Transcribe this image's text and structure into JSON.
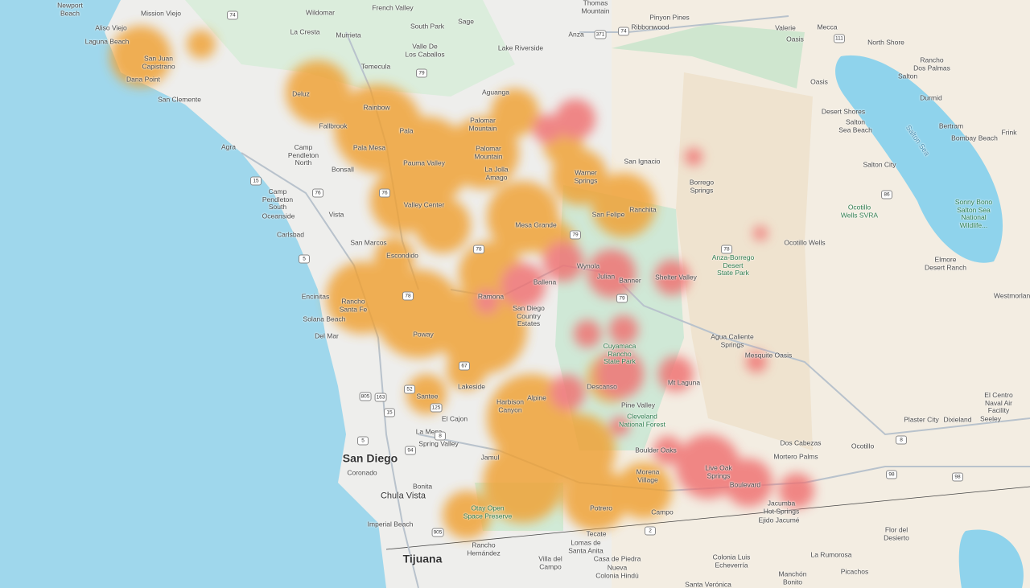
{
  "labels": [
    "Newport\nBeach",
    "Mission Viejo",
    "Aliso Viejo",
    "Laguna Beach",
    "San Juan\nCapistrano",
    "Dana Point",
    "San Clemente",
    "Wildomar",
    "La Cresta",
    "Murrieta",
    "French Valley",
    "South Park",
    "Sage",
    "Valle De\nLos Caballos",
    "Temecula",
    "Thomas\nMountain",
    "Pinyon Pines",
    "Ribbonwood",
    "Anza",
    "Lake Riverside",
    "Valerie",
    "Oasis",
    "Mecca",
    "North Shore",
    "Rancho\nDos Palmas",
    "Salton",
    "Oasis",
    "Durmid",
    "Desert Shores",
    "Salton\nSea Beach",
    "Bertram",
    "Frink",
    "Bombay Beach",
    "Salton Sea",
    "Salton City",
    "Deluz",
    "Rainbow",
    "Aguanga",
    "Palomar\nMountain",
    "Fallbrook",
    "Agra",
    "Pala",
    "Camp\nPendleton\nNorth",
    "Pala Mesa",
    "Palomar\nMountain",
    "Pauma Valley",
    "La Jolla\nAmago",
    "Bonsall",
    "Warner\nSprings",
    "San Ignacio",
    "Borrego\nSprings",
    "Camp\nPendleton\nSouth",
    "Oceanside",
    "Vista",
    "Valley Center",
    "San Felipe",
    "Ranchita",
    "Ocotillo\nWells SVRA",
    "Sonny Bono\nSalton Sea\nNational\nWildlife...",
    "Carlsbad",
    "San Marcos",
    "Mesa Grande",
    "Ocotillo Wells",
    "Escondido",
    "Wynola",
    "Julian",
    "Banner",
    "Shelter Valley",
    "Anza-Borrego\nDesert\nState Park",
    "Elmore\nDesert Ranch",
    "Westmorland",
    "Encinitas",
    "Rancho\nSanta Fe",
    "Ballena",
    "Ramona",
    "San Diego\nCountry\nEstates",
    "Solana Beach",
    "Del Mar",
    "Poway",
    "Agua Caliente\nSprings",
    "Mesquite Oasis",
    "Cuyamaca\nRancho\nState Park",
    "Mt Laguna",
    "Lakeside",
    "Descanso",
    "El Centro\nNaval Air\nFacility",
    "Santee",
    "Harbison\nCanyon",
    "Alpine",
    "Pine Valley",
    "Cleveland\nNational Forest",
    "El Cajon",
    "Plaster City",
    "Dixieland",
    "Seeley",
    "La Mesa",
    "Spring Valley",
    "Dos Cabezas",
    "Ocotillo",
    "Boulder Oaks",
    "San Diego",
    "Jamul",
    "Mortero Palms",
    "Live Oak\nSprings",
    "Morena\nVillage",
    "Coronado",
    "Boulevard",
    "Bonita",
    "Chula Vista",
    "Jacumba\nHot Springs",
    "Otay Open\nSpace Preserve",
    "Potrero",
    "Campo",
    "Ejido Jacumé",
    "Imperial Beach",
    "Tecate",
    "Flor del\nDesierto",
    "Rancho\nHernández",
    "Lomas de\nSanta Anita",
    "Tijuana",
    "Villa del\nCampo",
    "Casa de Piedra",
    "Colonia Luis\nEcheverría",
    "La Rumorosa",
    "Nueva\nColonia Hindú",
    "Manchón\nBonito",
    "Picachos",
    "Santa Verónica"
  ],
  "shields": [
    "74",
    "15",
    "79",
    "371",
    "74",
    "76",
    "76",
    "5",
    "78",
    "79",
    "79",
    "15",
    "8",
    "805",
    "94",
    "125",
    "67",
    "52",
    "163",
    "8",
    "98",
    "111",
    "86",
    "78",
    "78",
    "5",
    "905",
    "2",
    "98"
  ]
}
